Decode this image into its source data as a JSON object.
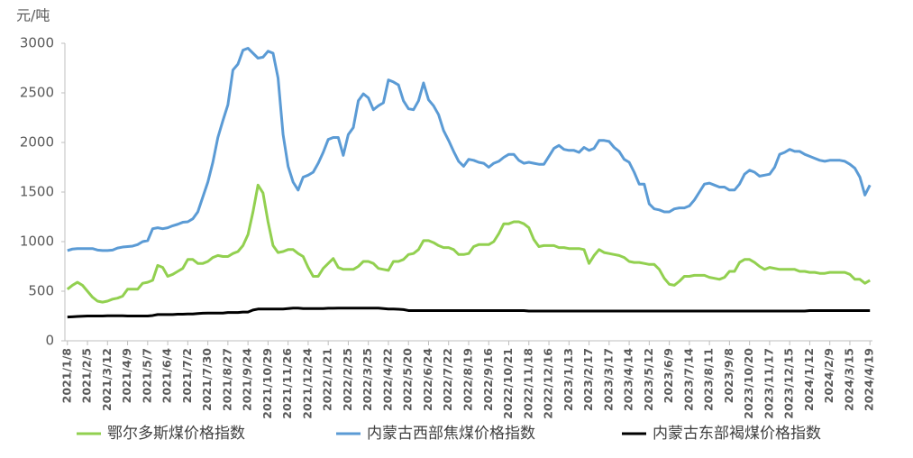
{
  "chart_data": {
    "type": "line",
    "y_label": "元/吨",
    "categories": [
      "2021/1/8",
      null,
      null,
      null,
      "2021/2/5",
      null,
      null,
      null,
      "2021/3/12",
      null,
      null,
      null,
      "2021/4/9",
      null,
      null,
      null,
      "2021/5/7",
      null,
      null,
      null,
      "2021/6/4",
      null,
      null,
      null,
      "2021/7/2",
      null,
      null,
      null,
      "2021/7/30",
      null,
      null,
      null,
      "2021/8/27",
      null,
      null,
      null,
      "2021/9/24",
      null,
      null,
      null,
      "2021/10/29",
      null,
      null,
      null,
      "2021/11/26",
      null,
      null,
      null,
      "2021/12/24",
      null,
      null,
      null,
      "2022/1/21",
      null,
      null,
      null,
      "2022/2/25",
      null,
      null,
      null,
      "2022/3/25",
      null,
      null,
      null,
      "2022/4/22",
      null,
      null,
      null,
      "2022/5/20",
      null,
      null,
      null,
      "2022/6/24",
      null,
      null,
      null,
      "2022/7/22",
      null,
      null,
      null,
      "2022/8/19",
      null,
      null,
      null,
      "2022/9/16",
      null,
      null,
      null,
      "2022/10/21",
      null,
      null,
      null,
      "2022/11/18",
      null,
      null,
      null,
      "2022/12/16",
      null,
      null,
      null,
      "2023/1/13",
      null,
      null,
      null,
      "2023/2/17",
      null,
      null,
      null,
      "2023/3/17",
      null,
      null,
      null,
      "2023/4/14",
      null,
      null,
      null,
      "2023/5/12",
      null,
      null,
      null,
      "2023/6/9",
      null,
      null,
      null,
      "2023/7/14",
      null,
      null,
      null,
      "2023/8/11",
      null,
      null,
      null,
      "2023/9/8",
      null,
      null,
      null,
      "2023/10/20",
      null,
      null,
      null,
      "2023/11/17",
      null,
      null,
      null,
      "2023/12/15",
      null,
      null,
      null,
      "2024/1/12",
      null,
      null,
      null,
      "2024/2/9",
      null,
      null,
      null,
      "2024/3/15",
      null,
      null,
      null,
      "2024/4/19"
    ],
    "series": [
      {
        "name": "鄂尔多斯煤价格指数",
        "color": "#92d050",
        "values": [
          520,
          560,
          590,
          560,
          500,
          440,
          400,
          390,
          400,
          420,
          430,
          450,
          520,
          520,
          520,
          580,
          590,
          610,
          760,
          740,
          650,
          670,
          700,
          730,
          820,
          820,
          780,
          780,
          800,
          840,
          860,
          850,
          850,
          880,
          900,
          960,
          1070,
          1300,
          1570,
          1490,
          1200,
          960,
          890,
          900,
          920,
          920,
          880,
          850,
          740,
          650,
          650,
          730,
          780,
          830,
          740,
          720,
          720,
          720,
          750,
          800,
          800,
          780,
          730,
          720,
          710,
          800,
          800,
          820,
          870,
          880,
          920,
          1010,
          1010,
          990,
          960,
          940,
          940,
          920,
          870,
          870,
          880,
          950,
          970,
          970,
          970,
          1000,
          1080,
          1180,
          1180,
          1200,
          1200,
          1180,
          1140,
          1020,
          950,
          960,
          960,
          960,
          940,
          940,
          930,
          930,
          930,
          920,
          780,
          860,
          920,
          890,
          880,
          870,
          860,
          840,
          800,
          790,
          790,
          780,
          770,
          770,
          720,
          630,
          570,
          560,
          600,
          650,
          650,
          660,
          660,
          660,
          640,
          630,
          620,
          640,
          700,
          700,
          790,
          820,
          820,
          790,
          750,
          720,
          740,
          730,
          720,
          720,
          720,
          720,
          700,
          700,
          690,
          690,
          680,
          680,
          690,
          690,
          690,
          690,
          670,
          620,
          620,
          580,
          610
        ]
      },
      {
        "name": "内蒙古西部焦煤价格指数",
        "color": "#5b9bd5",
        "values": [
          910,
          925,
          930,
          930,
          930,
          930,
          915,
          910,
          910,
          915,
          935,
          945,
          950,
          955,
          970,
          1000,
          1010,
          1130,
          1140,
          1130,
          1140,
          1160,
          1175,
          1195,
          1200,
          1230,
          1300,
          1450,
          1600,
          1800,
          2050,
          2220,
          2380,
          2730,
          2790,
          2930,
          2950,
          2900,
          2850,
          2860,
          2920,
          2900,
          2650,
          2080,
          1760,
          1600,
          1520,
          1650,
          1670,
          1700,
          1790,
          1900,
          2030,
          2050,
          2050,
          1870,
          2080,
          2150,
          2420,
          2490,
          2450,
          2330,
          2370,
          2400,
          2630,
          2610,
          2580,
          2420,
          2340,
          2330,
          2420,
          2600,
          2430,
          2370,
          2280,
          2120,
          2020,
          1910,
          1810,
          1760,
          1830,
          1820,
          1800,
          1790,
          1750,
          1790,
          1810,
          1850,
          1880,
          1880,
          1820,
          1790,
          1800,
          1790,
          1780,
          1780,
          1860,
          1940,
          1970,
          1930,
          1920,
          1920,
          1900,
          1950,
          1920,
          1940,
          2020,
          2020,
          2010,
          1950,
          1910,
          1830,
          1800,
          1700,
          1580,
          1580,
          1380,
          1330,
          1320,
          1300,
          1300,
          1330,
          1340,
          1340,
          1360,
          1420,
          1500,
          1580,
          1590,
          1570,
          1550,
          1550,
          1520,
          1520,
          1580,
          1680,
          1720,
          1700,
          1660,
          1670,
          1680,
          1750,
          1880,
          1900,
          1930,
          1910,
          1910,
          1880,
          1860,
          1840,
          1820,
          1810,
          1820,
          1820,
          1820,
          1810,
          1780,
          1740,
          1650,
          1470,
          1570
        ]
      },
      {
        "name": "内蒙古东部褐煤价格指数",
        "color": "#000000",
        "values": [
          240,
          242,
          245,
          248,
          250,
          250,
          250,
          250,
          252,
          252,
          252,
          252,
          250,
          250,
          250,
          250,
          250,
          255,
          265,
          265,
          265,
          265,
          268,
          268,
          270,
          270,
          275,
          278,
          280,
          280,
          280,
          280,
          285,
          285,
          285,
          290,
          290,
          310,
          320,
          320,
          320,
          320,
          320,
          320,
          325,
          330,
          330,
          325,
          325,
          325,
          325,
          325,
          328,
          328,
          330,
          330,
          330,
          330,
          330,
          330,
          330,
          330,
          330,
          325,
          320,
          320,
          318,
          315,
          305,
          305,
          305,
          305,
          305,
          305,
          305,
          305,
          305,
          305,
          305,
          305,
          305,
          305,
          305,
          305,
          305,
          305,
          305,
          305,
          305,
          305,
          305,
          305,
          300,
          300,
          300,
          300,
          300,
          300,
          300,
          300,
          300,
          300,
          300,
          300,
          300,
          300,
          300,
          300,
          300,
          300,
          300,
          300,
          300,
          300,
          300,
          300,
          300,
          300,
          300,
          300,
          300,
          300,
          300,
          300,
          300,
          300,
          300,
          300,
          300,
          300,
          300,
          300,
          300,
          300,
          300,
          300,
          300,
          300,
          300,
          300,
          300,
          300,
          300,
          300,
          300,
          300,
          300,
          300,
          305,
          305,
          305,
          305,
          305,
          305,
          305,
          305,
          305,
          305,
          305,
          305,
          305
        ]
      }
    ],
    "ylim": [
      0,
      3000
    ],
    "yticks": [
      0,
      500,
      1000,
      1500,
      2000,
      2500,
      3000
    ],
    "grid": false
  }
}
